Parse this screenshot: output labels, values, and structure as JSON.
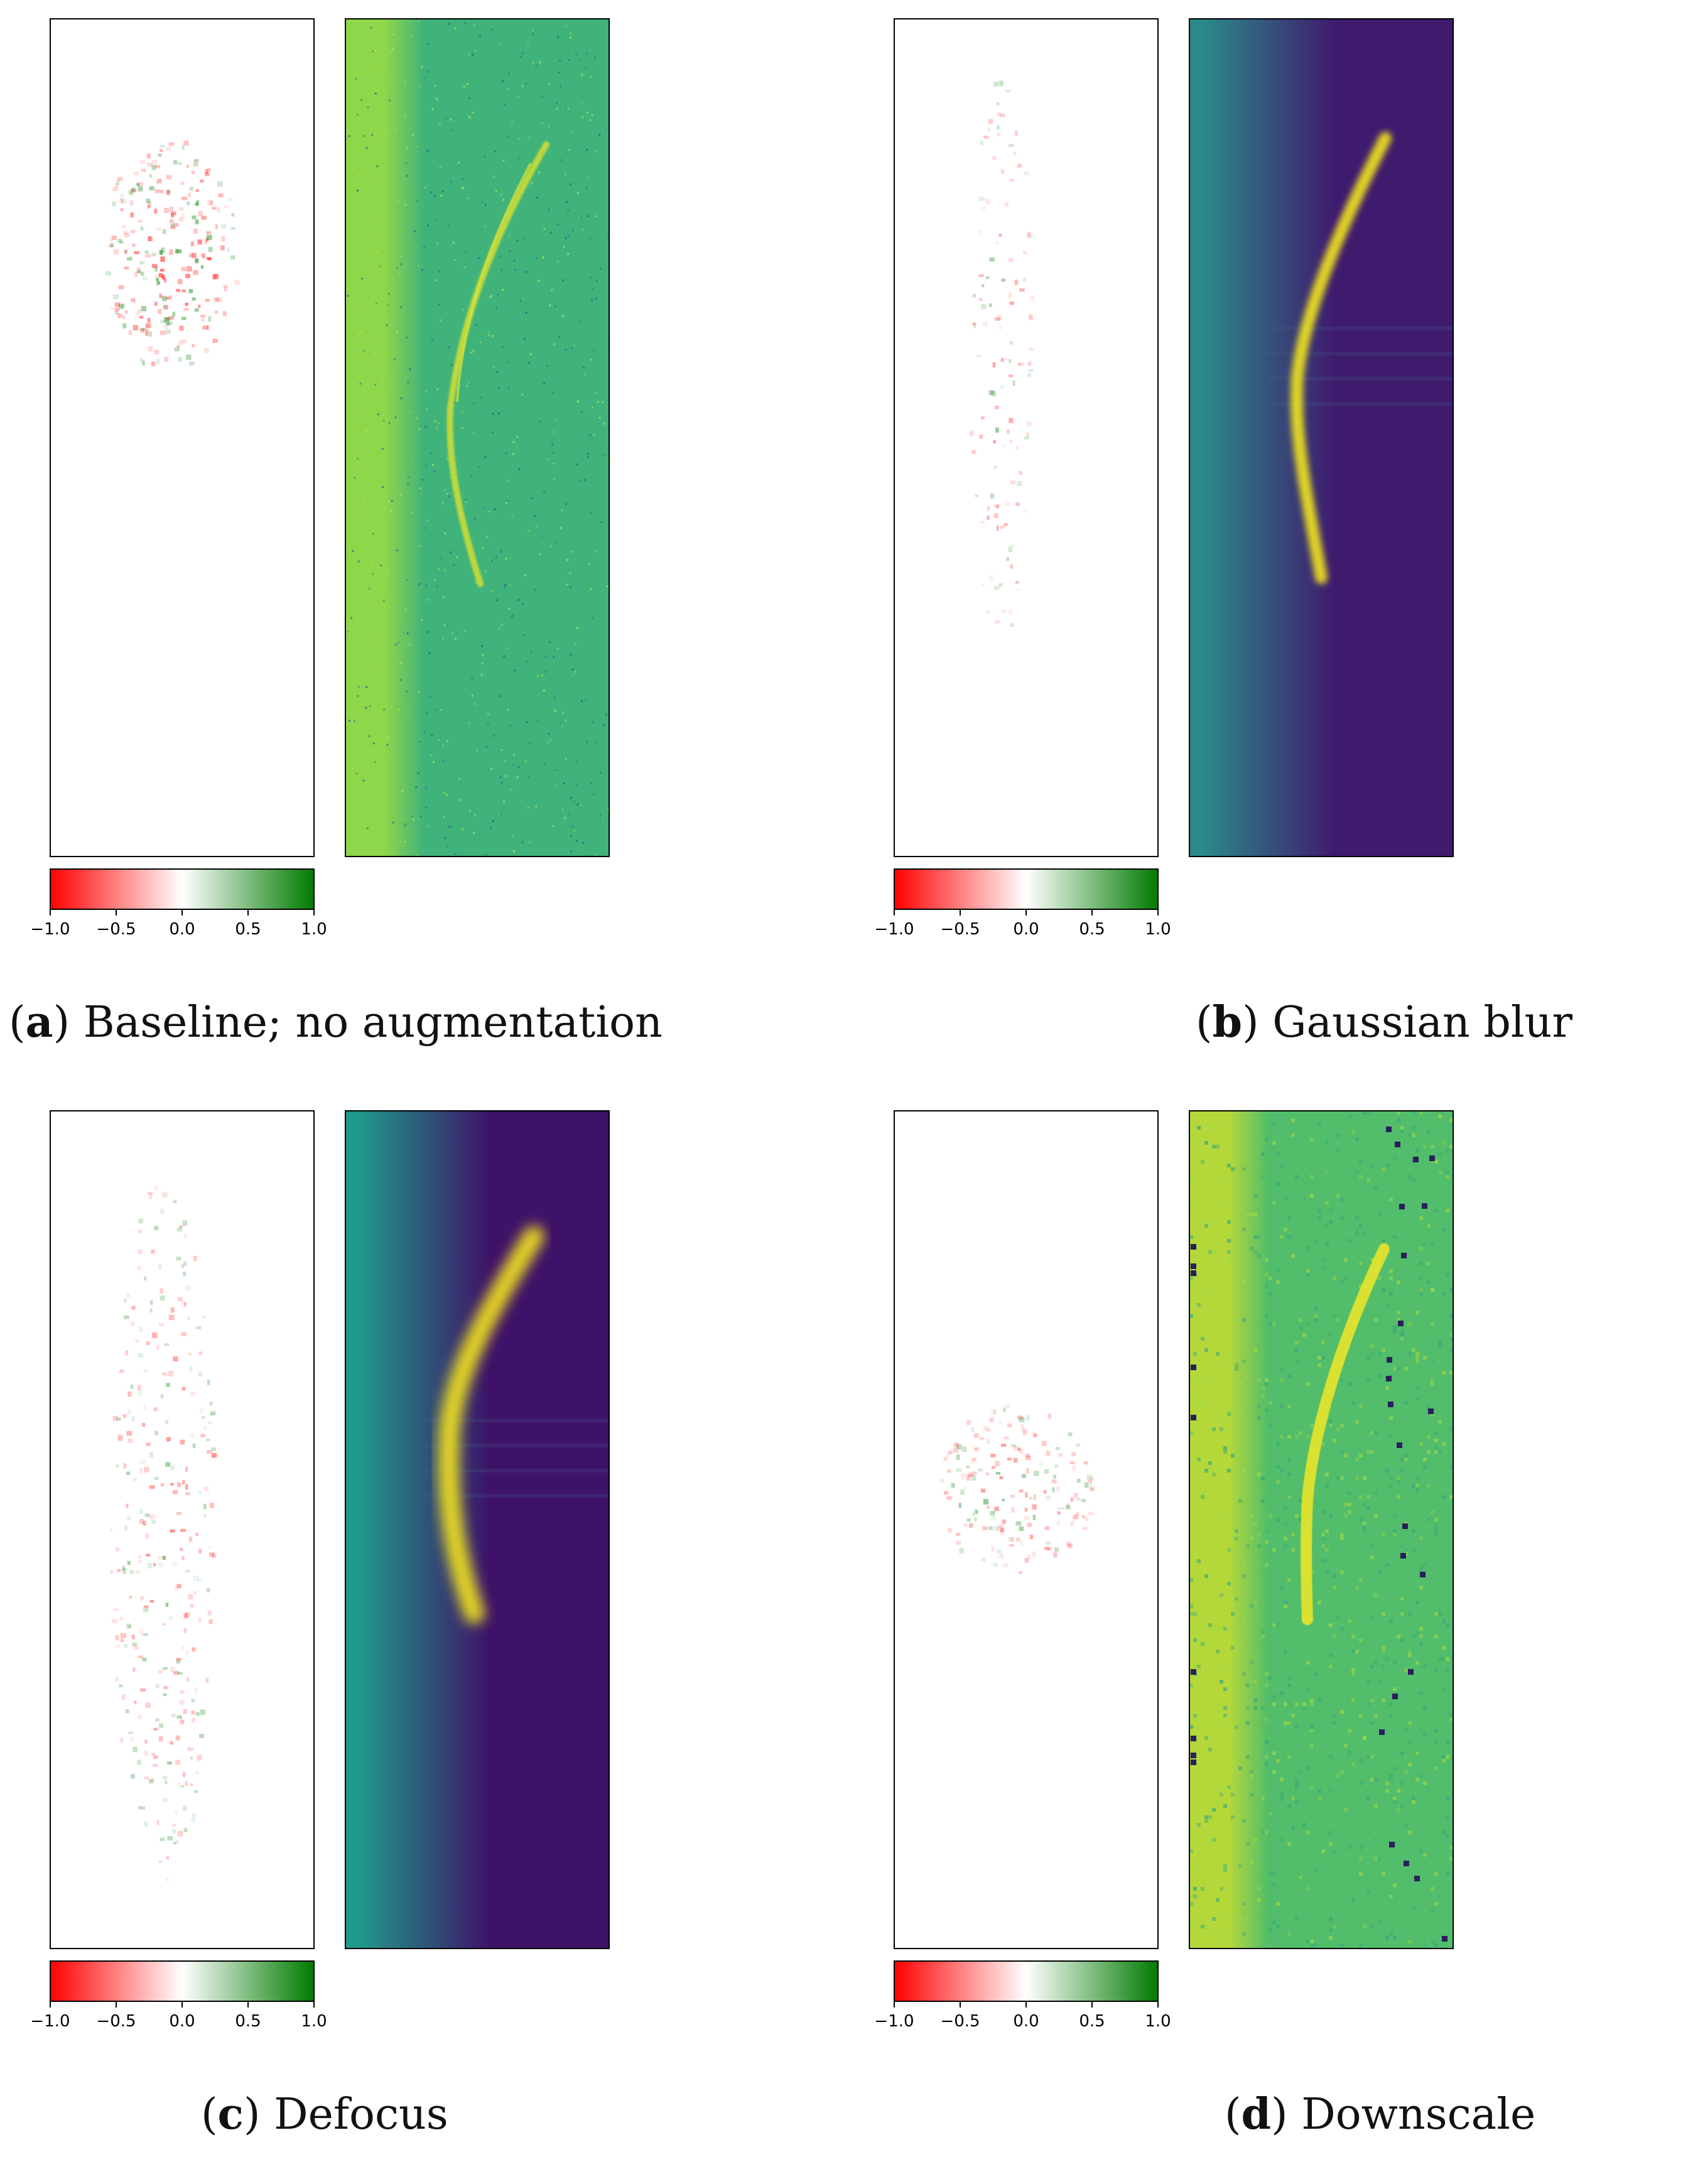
{
  "colorbar": {
    "ticks": [
      "−1.0",
      "−0.5",
      "0.0",
      "0.5",
      "1.0"
    ],
    "colors": {
      "negative": "#ff0000",
      "neutral": "#ffffff",
      "positive": "#007a00"
    }
  },
  "panels": [
    {
      "letter": "a",
      "caption": "Baseline; no augmentation",
      "style": "baseline",
      "colors": {
        "left": "#8ed64a",
        "right": "#3fb37a",
        "arc": "#e9e52a"
      }
    },
    {
      "letter": "b",
      "caption": "Gaussian blur",
      "style": "blur",
      "colors": {
        "left": "#2a8a8a",
        "right": "#3f1b6e",
        "arc": "#f2e51f"
      }
    },
    {
      "letter": "c",
      "caption": "Defocus",
      "style": "defocus",
      "colors": {
        "left": "#1f9a8a",
        "right": "#3e1268",
        "arc": "#f5e61c"
      }
    },
    {
      "letter": "d",
      "caption": "Downscale",
      "style": "downscale",
      "colors": {
        "left": "#b4d83a",
        "right": "#52bd6a",
        "arc": "#e9e52a",
        "dots": "#2b1e5e"
      }
    }
  ]
}
